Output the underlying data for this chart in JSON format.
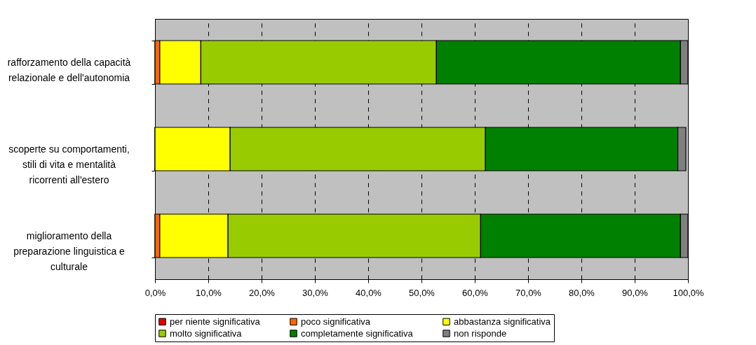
{
  "chart_data": {
    "type": "bar",
    "orientation": "horizontal",
    "stacked": true,
    "categories": [
      "rafforzamento della capacità relazionale e dell'autonomia",
      "scoperte su comportamenti, stili di vita e mentalità ricorrenti all'estero",
      "miglioramento della preparazione linguistica e culturale"
    ],
    "series": [
      {
        "name": "per niente significativa",
        "color": "#e00000",
        "values": [
          0,
          0,
          0
        ]
      },
      {
        "name": "poco significativa",
        "color": "#ff6600",
        "values": [
          0.9,
          0,
          0.9
        ]
      },
      {
        "name": "abbastanza significativa",
        "color": "#ffff00",
        "values": [
          7.7,
          14.1,
          12.8
        ]
      },
      {
        "name": "molto significativa",
        "color": "#99cc00",
        "values": [
          44.2,
          47.9,
          47.4
        ]
      },
      {
        "name": "completamente significativa",
        "color": "#008000",
        "values": [
          45.8,
          36.1,
          37.5
        ]
      },
      {
        "name": "non risponde",
        "color": "#808080",
        "values": [
          1.4,
          1.5,
          1.4
        ]
      }
    ],
    "xlim": [
      0,
      100
    ],
    "xticks": [
      {
        "value": 0,
        "label": "0,0%"
      },
      {
        "value": 10,
        "label": "10,0%"
      },
      {
        "value": 20,
        "label": "20,0%"
      },
      {
        "value": 30,
        "label": "30,0%"
      },
      {
        "value": 40,
        "label": "40,0%"
      },
      {
        "value": 50,
        "label": "50,0%"
      },
      {
        "value": 60,
        "label": "60,0%"
      },
      {
        "value": 70,
        "label": "70,0%"
      },
      {
        "value": 80,
        "label": "80,0%"
      },
      {
        "value": 90,
        "label": "90,0%"
      },
      {
        "value": 100,
        "label": "100,0%"
      }
    ],
    "grid": "x",
    "legend": "bottom"
  }
}
